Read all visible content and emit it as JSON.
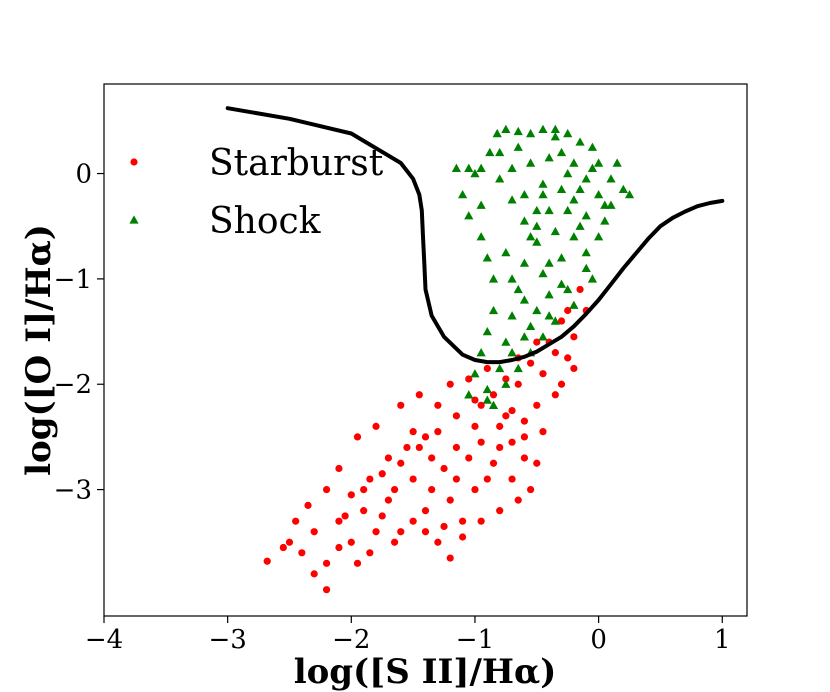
{
  "chart_data": {
    "type": "scatter",
    "xlabel": "log([S II]/Hα)",
    "ylabel": "log([O I]/Hα)",
    "xlim": [
      -4,
      1.2
    ],
    "ylim": [
      -4.2,
      0.85
    ],
    "xticks": [
      -4,
      -3,
      -2,
      -1,
      0,
      1
    ],
    "xtick_labels": [
      "−4",
      "−3",
      "−2",
      "−1",
      "0",
      "1"
    ],
    "yticks": [
      0,
      -1,
      -2,
      -3
    ],
    "ytick_labels": [
      "0",
      "−1",
      "−2",
      "−3"
    ],
    "legend_position": "top-left",
    "grid": false,
    "series": [
      {
        "name": "Starburst",
        "marker": "circle",
        "color": "#ff0000",
        "points": [
          [
            -2.68,
            -3.68
          ],
          [
            -2.5,
            -3.5
          ],
          [
            -2.4,
            -3.6
          ],
          [
            -2.3,
            -3.8
          ],
          [
            -2.2,
            -3.95
          ],
          [
            -2.2,
            -3.7
          ],
          [
            -2.1,
            -3.3
          ],
          [
            -2.0,
            -3.5
          ],
          [
            -1.9,
            -3.2
          ],
          [
            -1.85,
            -3.6
          ],
          [
            -1.7,
            -3.1
          ],
          [
            -1.6,
            -3.4
          ],
          [
            -1.5,
            -2.9
          ],
          [
            -1.4,
            -3.2
          ],
          [
            -1.3,
            -3.5
          ],
          [
            -1.2,
            -3.65
          ],
          [
            -1.1,
            -3.3
          ],
          [
            -1.0,
            -3.0
          ],
          [
            -0.9,
            -2.9
          ],
          [
            -0.8,
            -2.6
          ],
          [
            -0.7,
            -2.9
          ],
          [
            -0.6,
            -2.5
          ],
          [
            -0.5,
            -2.2
          ],
          [
            -0.45,
            -1.9
          ],
          [
            -0.35,
            -1.7
          ],
          [
            -0.25,
            -1.3
          ],
          [
            -0.2,
            -1.55
          ],
          [
            -0.15,
            -1.1
          ],
          [
            -0.3,
            -1.4
          ],
          [
            -0.4,
            -1.6
          ],
          [
            -0.55,
            -1.8
          ],
          [
            -0.65,
            -2.0
          ],
          [
            -0.75,
            -2.3
          ],
          [
            -0.85,
            -2.1
          ],
          [
            -1.0,
            -2.4
          ],
          [
            -1.15,
            -2.6
          ],
          [
            -1.25,
            -2.8
          ],
          [
            -1.4,
            -2.5
          ],
          [
            -1.55,
            -2.6
          ],
          [
            -1.7,
            -2.7
          ],
          [
            -1.85,
            -2.9
          ],
          [
            -2.0,
            -3.05
          ],
          [
            -2.1,
            -2.8
          ],
          [
            -1.95,
            -2.5
          ],
          [
            -1.8,
            -2.4
          ],
          [
            -1.6,
            -2.2
          ],
          [
            -1.45,
            -2.1
          ],
          [
            -1.3,
            -2.2
          ],
          [
            -1.2,
            -2.0
          ],
          [
            -1.05,
            -1.95
          ],
          [
            -0.95,
            -2.2
          ],
          [
            -0.8,
            -2.4
          ],
          [
            -0.7,
            -2.55
          ],
          [
            -0.6,
            -2.7
          ],
          [
            -0.55,
            -3.0
          ],
          [
            -0.65,
            -3.1
          ],
          [
            -0.8,
            -3.2
          ],
          [
            -0.95,
            -3.3
          ],
          [
            -1.1,
            -3.45
          ],
          [
            -1.25,
            -3.35
          ],
          [
            -1.35,
            -3.0
          ],
          [
            -1.5,
            -3.3
          ],
          [
            -1.65,
            -3.5
          ],
          [
            -1.8,
            -3.4
          ],
          [
            -1.95,
            -3.7
          ],
          [
            -2.1,
            -3.55
          ],
          [
            -2.3,
            -3.4
          ],
          [
            -2.45,
            -3.3
          ],
          [
            -2.55,
            -3.55
          ],
          [
            -2.35,
            -3.15
          ],
          [
            -2.2,
            -3.0
          ],
          [
            -2.05,
            -3.25
          ],
          [
            -1.9,
            -3.0
          ],
          [
            -1.75,
            -2.85
          ],
          [
            -1.6,
            -2.75
          ],
          [
            -1.45,
            -2.6
          ],
          [
            -1.3,
            -2.45
          ],
          [
            -1.15,
            -2.3
          ],
          [
            -1.0,
            -2.15
          ],
          [
            -0.9,
            -1.85
          ],
          [
            -0.75,
            -1.95
          ],
          [
            -0.65,
            -1.75
          ],
          [
            -0.5,
            -1.6
          ],
          [
            -0.45,
            -2.45
          ],
          [
            -0.5,
            -2.75
          ],
          [
            -0.7,
            -2.25
          ],
          [
            -0.85,
            -2.75
          ],
          [
            -1.05,
            -2.7
          ],
          [
            -1.2,
            -3.1
          ],
          [
            -1.35,
            -2.7
          ],
          [
            -1.5,
            -2.45
          ],
          [
            -1.65,
            -3.0
          ],
          [
            -1.4,
            -3.4
          ],
          [
            -1.15,
            -2.9
          ],
          [
            -0.95,
            -2.55
          ],
          [
            -0.6,
            -2.35
          ],
          [
            -0.3,
            -2.0
          ],
          [
            -0.2,
            -1.85
          ],
          [
            -0.1,
            -1.3
          ],
          [
            -0.25,
            -1.75
          ],
          [
            -0.35,
            -2.1
          ],
          [
            -1.75,
            -3.25
          ]
        ]
      },
      {
        "name": "Shock",
        "marker": "triangle",
        "color": "#008000",
        "points": [
          [
            -1.15,
            0.05
          ],
          [
            -1.05,
            0.05
          ],
          [
            -0.95,
            0.05
          ],
          [
            -1.1,
            -0.2
          ],
          [
            -1.05,
            -0.4
          ],
          [
            -0.95,
            -0.6
          ],
          [
            -0.9,
            -0.8
          ],
          [
            -0.85,
            -1.0
          ],
          [
            -0.85,
            -1.3
          ],
          [
            -0.9,
            -1.5
          ],
          [
            -0.95,
            -1.7
          ],
          [
            -1.0,
            -1.9
          ],
          [
            -1.05,
            -2.1
          ],
          [
            -0.9,
            -2.05
          ],
          [
            -0.8,
            -1.85
          ],
          [
            -0.75,
            -1.6
          ],
          [
            -0.7,
            -1.35
          ],
          [
            -0.65,
            -1.1
          ],
          [
            -0.6,
            -0.85
          ],
          [
            -0.55,
            -0.6
          ],
          [
            -0.5,
            -0.35
          ],
          [
            -0.45,
            -0.1
          ],
          [
            -0.4,
            0.15
          ],
          [
            -0.35,
            0.35
          ],
          [
            -0.3,
            0.2
          ],
          [
            -0.25,
            0.0
          ],
          [
            -0.2,
            -0.25
          ],
          [
            -0.15,
            -0.5
          ],
          [
            -0.1,
            -0.75
          ],
          [
            -0.05,
            -1.0
          ],
          [
            0.0,
            -0.6
          ],
          [
            0.05,
            -0.3
          ],
          [
            0.1,
            -0.05
          ],
          [
            0.15,
            0.1
          ],
          [
            0.2,
            -0.15
          ],
          [
            0.25,
            -0.2
          ],
          [
            0.0,
            0.1
          ],
          [
            -0.05,
            0.25
          ],
          [
            -0.15,
            0.3
          ],
          [
            -0.25,
            0.38
          ],
          [
            -0.35,
            0.42
          ],
          [
            -0.45,
            0.42
          ],
          [
            -0.55,
            0.38
          ],
          [
            -0.65,
            0.4
          ],
          [
            -0.75,
            0.42
          ],
          [
            -0.82,
            0.38
          ],
          [
            -0.88,
            0.2
          ],
          [
            -0.8,
            -0.05
          ],
          [
            -0.7,
            -0.25
          ],
          [
            -0.6,
            -0.45
          ],
          [
            -0.5,
            -0.65
          ],
          [
            -0.4,
            -0.85
          ],
          [
            -0.3,
            -1.05
          ],
          [
            -0.2,
            -1.25
          ],
          [
            -0.35,
            -1.4
          ],
          [
            -0.45,
            -1.55
          ],
          [
            -0.55,
            -1.7
          ],
          [
            -0.65,
            -1.85
          ],
          [
            -0.75,
            -2.0
          ],
          [
            -0.85,
            -2.2
          ],
          [
            -0.6,
            -1.55
          ],
          [
            -0.5,
            -1.3
          ],
          [
            -0.4,
            -1.15
          ],
          [
            -0.3,
            -0.8
          ],
          [
            -0.2,
            -0.6
          ],
          [
            -0.1,
            -0.4
          ],
          [
            0.0,
            -0.2
          ],
          [
            -0.1,
            -0.05
          ],
          [
            -0.2,
            0.1
          ],
          [
            -0.3,
            -0.15
          ],
          [
            -0.4,
            -0.35
          ],
          [
            -0.5,
            -0.5
          ],
          [
            -0.6,
            -0.2
          ],
          [
            -0.7,
            0.05
          ],
          [
            -0.8,
            0.2
          ],
          [
            -0.65,
            0.25
          ],
          [
            -0.55,
            0.1
          ],
          [
            -0.45,
            -0.2
          ],
          [
            -1.0,
            0.0
          ],
          [
            -0.95,
            -0.3
          ],
          [
            -0.75,
            -0.75
          ],
          [
            -0.7,
            -1.0
          ],
          [
            -0.6,
            -1.2
          ],
          [
            -0.45,
            -0.95
          ],
          [
            -0.35,
            -0.55
          ],
          [
            -0.25,
            -0.35
          ],
          [
            -0.15,
            -0.15
          ],
          [
            -0.05,
            0.05
          ],
          [
            0.05,
            -0.45
          ],
          [
            0.1,
            -0.3
          ],
          [
            -0.1,
            -0.9
          ],
          [
            -0.25,
            -1.1
          ],
          [
            -0.4,
            -1.35
          ],
          [
            -0.55,
            -1.45
          ],
          [
            -0.7,
            -1.7
          ],
          [
            -0.9,
            -2.15
          ]
        ]
      }
    ],
    "demarcation_line": {
      "color": "#000000",
      "x": [
        -3.0,
        -2.5,
        -2.0,
        -1.6,
        -1.5,
        -1.45,
        -1.43,
        -1.42,
        -1.41,
        -1.4,
        -1.35,
        -1.25,
        -1.1,
        -1.0,
        -0.9,
        -0.8,
        -0.7,
        -0.6,
        -0.5,
        -0.4,
        -0.3,
        -0.2,
        -0.1,
        0.0,
        0.1,
        0.2,
        0.3,
        0.4,
        0.5,
        0.6,
        0.7,
        0.8,
        0.9,
        1.0
      ],
      "y": [
        0.62,
        0.52,
        0.38,
        0.1,
        -0.05,
        -0.2,
        -0.35,
        -0.6,
        -0.85,
        -1.1,
        -1.35,
        -1.55,
        -1.72,
        -1.77,
        -1.79,
        -1.79,
        -1.77,
        -1.74,
        -1.69,
        -1.62,
        -1.55,
        -1.45,
        -1.33,
        -1.2,
        -1.05,
        -0.9,
        -0.76,
        -0.62,
        -0.5,
        -0.42,
        -0.36,
        -0.31,
        -0.28,
        -0.26
      ]
    }
  }
}
